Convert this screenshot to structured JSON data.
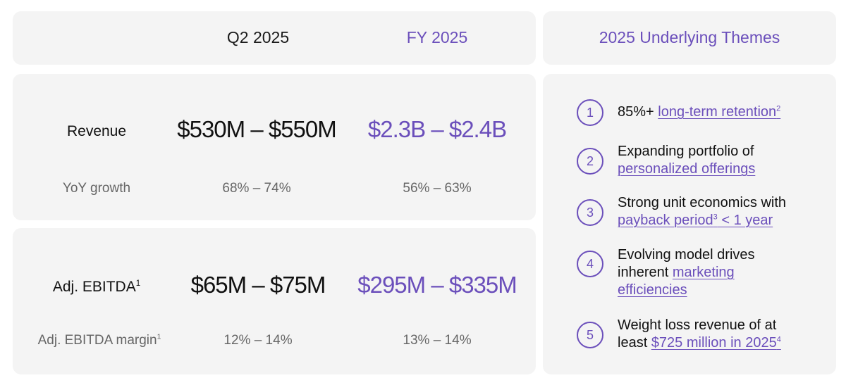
{
  "header": {
    "q2_label": "Q2 2025",
    "fy_label": "FY 2025",
    "themes_title": "2025 Underlying Themes"
  },
  "revenue": {
    "label": "Revenue",
    "q2_value": "$530M – $550M",
    "fy_value": "$2.3B – $2.4B",
    "growth_label": "YoY growth",
    "q2_growth": "68% – 74%",
    "fy_growth": "56% – 63%"
  },
  "ebitda": {
    "label": "Adj. EBITDA",
    "label_sup": "1",
    "q2_value": "$65M – $75M",
    "fy_value": "$295M – $335M",
    "margin_label": "Adj. EBITDA margin",
    "margin_sup": "1",
    "q2_margin": "12% – 14%",
    "fy_margin": "13% – 14%"
  },
  "themes": [
    {
      "num": "1",
      "pre": "85%+ ",
      "link": "long-term retention",
      "sup": "2",
      "post": ""
    },
    {
      "num": "2",
      "pre": "Expanding portfolio of",
      "link": "personalized offerings",
      "sup": "",
      "post": ""
    },
    {
      "num": "3",
      "pre": "Strong unit economics with",
      "link": "payback period",
      "sup": "3",
      "post": " < 1 year"
    },
    {
      "num": "4",
      "pre": "Evolving model drives inherent",
      "link": "marketing",
      "link2": "efficiencies",
      "sup": "",
      "post": ""
    },
    {
      "num": "5",
      "pre": "Weight loss revenue of at",
      "pre2": "least ",
      "link": "$725 million in 2025",
      "sup": "4",
      "post": ""
    }
  ],
  "colors": {
    "accent": "#6b4fbb",
    "card_bg": "#f4f4f4",
    "text": "#111111",
    "muted": "#666666"
  }
}
